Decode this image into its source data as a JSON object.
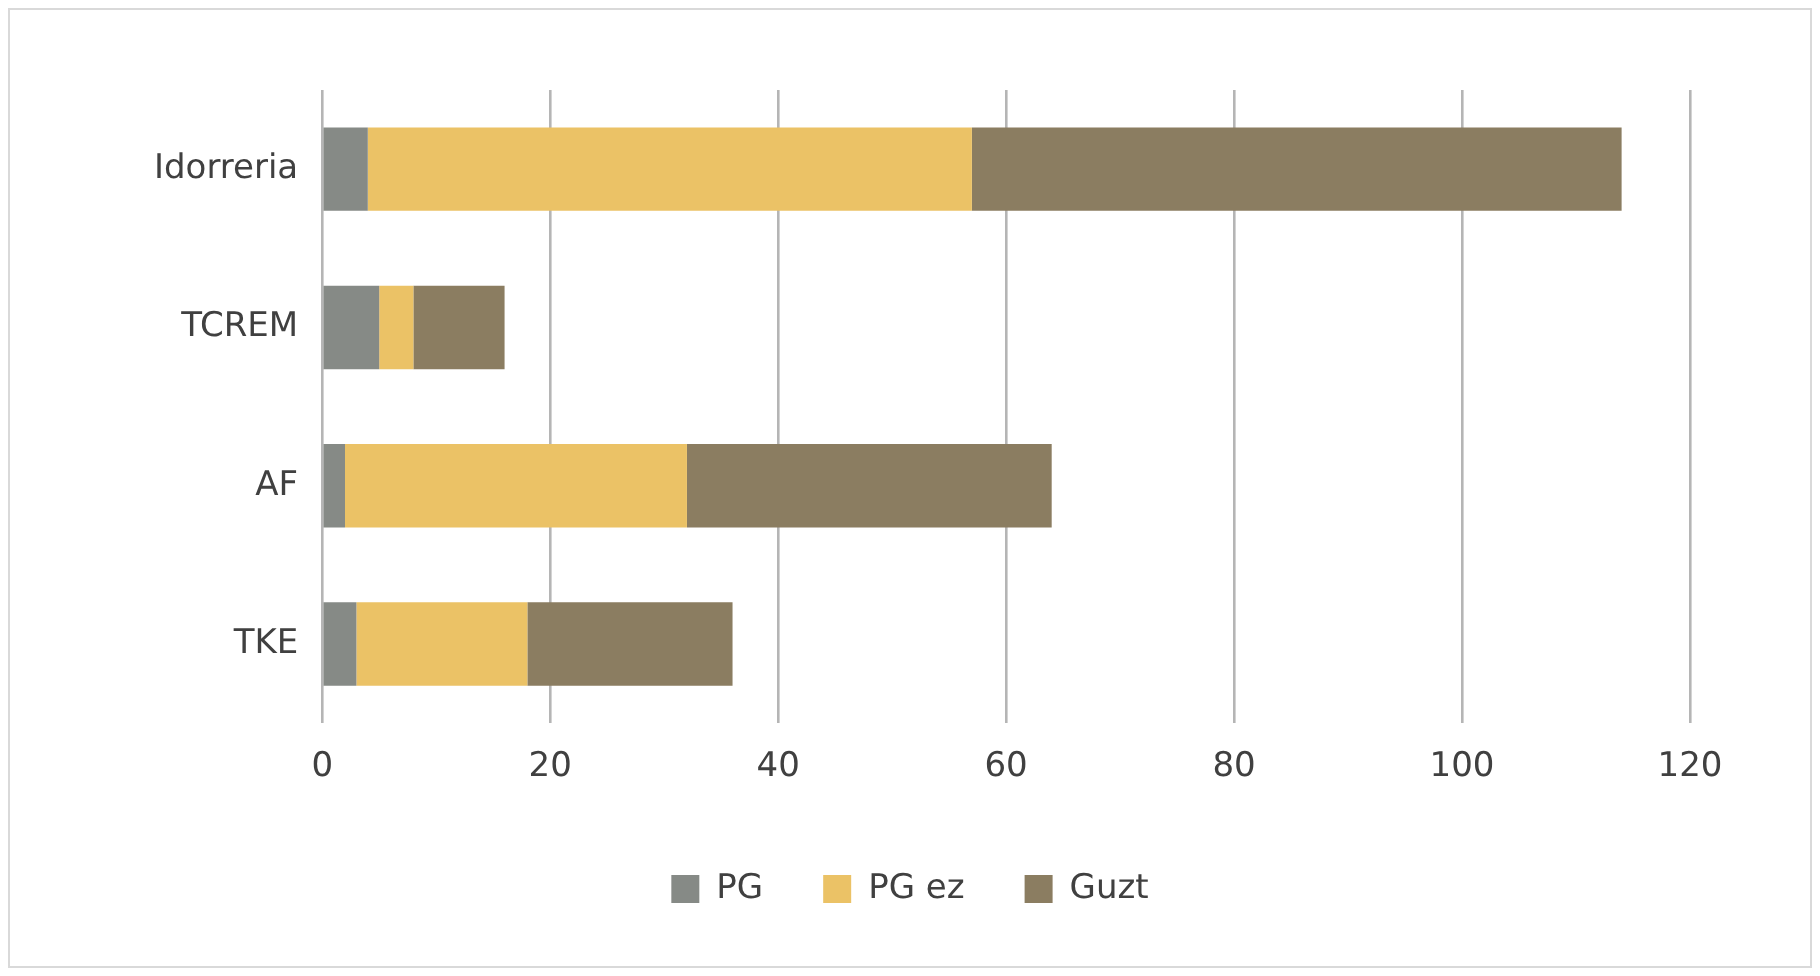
{
  "chart_data": {
    "type": "bar",
    "orientation": "horizontal",
    "stacked": true,
    "categories": [
      "Idorreria",
      "TCREM",
      "AF",
      "TKE"
    ],
    "series": [
      {
        "name": "PG",
        "color": "#868a86",
        "values": [
          4,
          5,
          2,
          3
        ]
      },
      {
        "name": "PG ez",
        "color": "#ebc266",
        "values": [
          53,
          3,
          30,
          15
        ]
      },
      {
        "name": "Guzt",
        "color": "#8b7d61",
        "values": [
          57,
          8,
          32,
          18
        ]
      }
    ],
    "xlim": [
      0,
      120
    ],
    "xticks": [
      0,
      20,
      40,
      60,
      80,
      100,
      120
    ],
    "grid": "x",
    "legend": "bottom"
  }
}
